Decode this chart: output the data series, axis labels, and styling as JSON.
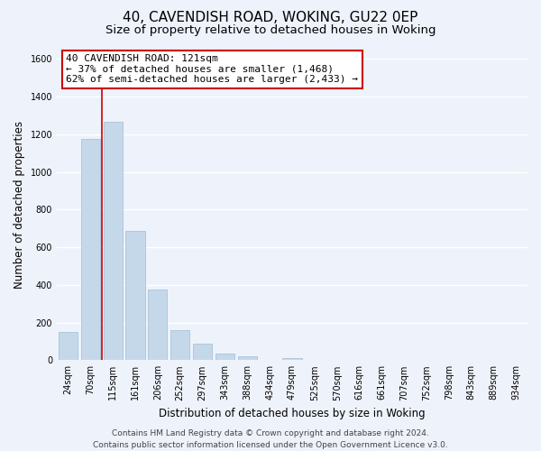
{
  "title": "40, CAVENDISH ROAD, WOKING, GU22 0EP",
  "subtitle": "Size of property relative to detached houses in Woking",
  "xlabel": "Distribution of detached houses by size in Woking",
  "ylabel": "Number of detached properties",
  "bar_labels": [
    "24sqm",
    "70sqm",
    "115sqm",
    "161sqm",
    "206sqm",
    "252sqm",
    "297sqm",
    "343sqm",
    "388sqm",
    "434sqm",
    "479sqm",
    "525sqm",
    "570sqm",
    "616sqm",
    "661sqm",
    "707sqm",
    "752sqm",
    "798sqm",
    "843sqm",
    "889sqm",
    "934sqm"
  ],
  "bar_values": [
    150,
    1175,
    1265,
    685,
    375,
    162,
    90,
    35,
    22,
    0,
    10,
    0,
    0,
    0,
    0,
    0,
    0,
    0,
    0,
    0,
    0
  ],
  "bar_color": "#c5d8ea",
  "vline_x_index": 2,
  "vline_color": "#cc0000",
  "ylim": [
    0,
    1650
  ],
  "yticks": [
    0,
    200,
    400,
    600,
    800,
    1000,
    1200,
    1400,
    1600
  ],
  "annotation_title": "40 CAVENDISH ROAD: 121sqm",
  "annotation_line1": "← 37% of detached houses are smaller (1,468)",
  "annotation_line2": "62% of semi-detached houses are larger (2,433) →",
  "annotation_box_facecolor": "#ffffff",
  "annotation_box_edgecolor": "#cc0000",
  "footer_line1": "Contains HM Land Registry data © Crown copyright and database right 2024.",
  "footer_line2": "Contains public sector information licensed under the Open Government Licence v3.0.",
  "bg_color": "#eef2fb",
  "grid_color": "#ffffff",
  "title_fontsize": 11,
  "subtitle_fontsize": 9.5,
  "axis_label_fontsize": 8.5,
  "tick_fontsize": 7,
  "footer_fontsize": 6.5,
  "annotation_fontsize": 8
}
